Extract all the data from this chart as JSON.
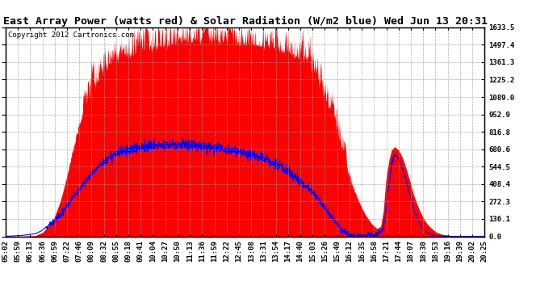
{
  "title": "East Array Power (watts red) & Solar Radiation (W/m2 blue) Wed Jun 13 20:31",
  "copyright": "Copyright 2012 Cartronics.com",
  "y_right_ticks": [
    0.0,
    136.1,
    272.3,
    408.4,
    544.5,
    680.6,
    816.8,
    952.9,
    1089.0,
    1225.2,
    1361.3,
    1497.4,
    1633.5
  ],
  "y_max": 1633.5,
  "y_min": 0.0,
  "x_labels": [
    "05:02",
    "05:59",
    "06:13",
    "06:36",
    "06:59",
    "07:22",
    "07:46",
    "08:09",
    "08:32",
    "08:55",
    "09:18",
    "09:41",
    "10:04",
    "10:27",
    "10:50",
    "11:13",
    "11:36",
    "11:59",
    "12:22",
    "12:45",
    "13:08",
    "13:31",
    "13:54",
    "14:17",
    "14:40",
    "15:03",
    "15:26",
    "15:49",
    "16:12",
    "16:35",
    "16:58",
    "17:21",
    "17:44",
    "18:07",
    "18:30",
    "18:53",
    "19:16",
    "19:39",
    "20:02",
    "20:25"
  ],
  "bg_color": "#ffffff",
  "grid_color": "#999999",
  "fill_color_red": "#ff0000",
  "line_color_blue": "#0000ff",
  "title_fontsize": 9.5,
  "tick_fontsize": 6.5,
  "copyright_fontsize": 6.5,
  "power_points": [
    [
      302,
      0
    ],
    [
      330,
      0
    ],
    [
      359,
      5
    ],
    [
      373,
      30
    ],
    [
      385,
      80
    ],
    [
      396,
      150
    ],
    [
      408,
      280
    ],
    [
      419,
      450
    ],
    [
      430,
      650
    ],
    [
      442,
      850
    ],
    [
      454,
      1000
    ],
    [
      466,
      1100
    ],
    [
      478,
      1180
    ],
    [
      489,
      1250
    ],
    [
      500,
      1300
    ],
    [
      512,
      1350
    ],
    [
      523,
      1380
    ],
    [
      535,
      1400
    ],
    [
      546,
      1420
    ],
    [
      558,
      1440
    ],
    [
      570,
      1460
    ],
    [
      581,
      1470
    ],
    [
      593,
      1480
    ],
    [
      604,
      1490
    ],
    [
      616,
      1500
    ],
    [
      627,
      1510
    ],
    [
      638,
      1520
    ],
    [
      650,
      1525
    ],
    [
      661,
      1530
    ],
    [
      673,
      1530
    ],
    [
      684,
      1530
    ],
    [
      696,
      1528
    ],
    [
      707,
      1525
    ],
    [
      719,
      1520
    ],
    [
      730,
      1518
    ],
    [
      742,
      1515
    ],
    [
      753,
      1510
    ],
    [
      765,
      1505
    ],
    [
      776,
      1500
    ],
    [
      788,
      1495
    ],
    [
      800,
      1488
    ],
    [
      811,
      1480
    ],
    [
      823,
      1470
    ],
    [
      834,
      1455
    ],
    [
      846,
      1435
    ],
    [
      857,
      1410
    ],
    [
      869,
      1380
    ],
    [
      880,
      1340
    ],
    [
      892,
      1280
    ],
    [
      903,
      1200
    ],
    [
      915,
      1100
    ],
    [
      926,
      980
    ],
    [
      938,
      840
    ],
    [
      949,
      680
    ],
    [
      961,
      520
    ],
    [
      972,
      380
    ],
    [
      984,
      260
    ],
    [
      995,
      170
    ],
    [
      1007,
      100
    ],
    [
      1018,
      60
    ],
    [
      1025,
      80
    ],
    [
      1030,
      200
    ],
    [
      1035,
      450
    ],
    [
      1041,
      600
    ],
    [
      1046,
      680
    ],
    [
      1052,
      700
    ],
    [
      1058,
      680
    ],
    [
      1064,
      640
    ],
    [
      1070,
      580
    ],
    [
      1076,
      500
    ],
    [
      1082,
      420
    ],
    [
      1087,
      340
    ],
    [
      1093,
      270
    ],
    [
      1099,
      210
    ],
    [
      1105,
      160
    ],
    [
      1110,
      120
    ],
    [
      1116,
      90
    ],
    [
      1122,
      65
    ],
    [
      1128,
      45
    ],
    [
      1133,
      30
    ],
    [
      1144,
      15
    ],
    [
      1156,
      8
    ],
    [
      1168,
      3
    ],
    [
      1179,
      1
    ],
    [
      1202,
      0
    ],
    [
      1225,
      0
    ]
  ],
  "radiation_points": [
    [
      302,
      0
    ],
    [
      330,
      5
    ],
    [
      359,
      20
    ],
    [
      370,
      40
    ],
    [
      380,
      70
    ],
    [
      396,
      120
    ],
    [
      408,
      170
    ],
    [
      419,
      230
    ],
    [
      430,
      295
    ],
    [
      442,
      360
    ],
    [
      454,
      420
    ],
    [
      466,
      480
    ],
    [
      478,
      530
    ],
    [
      489,
      570
    ],
    [
      500,
      610
    ],
    [
      512,
      640
    ],
    [
      523,
      660
    ],
    [
      535,
      675
    ],
    [
      546,
      685
    ],
    [
      558,
      695
    ],
    [
      570,
      700
    ],
    [
      581,
      705
    ],
    [
      593,
      710
    ],
    [
      604,
      715
    ],
    [
      616,
      718
    ],
    [
      627,
      720
    ],
    [
      638,
      720
    ],
    [
      650,
      718
    ],
    [
      661,
      715
    ],
    [
      673,
      710
    ],
    [
      684,
      705
    ],
    [
      696,
      700
    ],
    [
      707,
      695
    ],
    [
      719,
      688
    ],
    [
      730,
      680
    ],
    [
      742,
      672
    ],
    [
      753,
      663
    ],
    [
      765,
      652
    ],
    [
      776,
      640
    ],
    [
      788,
      625
    ],
    [
      800,
      608
    ],
    [
      811,
      588
    ],
    [
      823,
      565
    ],
    [
      834,
      538
    ],
    [
      846,
      508
    ],
    [
      857,
      474
    ],
    [
      869,
      436
    ],
    [
      880,
      394
    ],
    [
      892,
      348
    ],
    [
      903,
      296
    ],
    [
      915,
      238
    ],
    [
      926,
      175
    ],
    [
      938,
      110
    ],
    [
      949,
      55
    ],
    [
      961,
      20
    ],
    [
      972,
      5
    ],
    [
      984,
      2
    ],
    [
      995,
      5
    ],
    [
      1007,
      8
    ],
    [
      1018,
      15
    ],
    [
      1025,
      30
    ],
    [
      1030,
      80
    ],
    [
      1035,
      200
    ],
    [
      1041,
      420
    ],
    [
      1046,
      580
    ],
    [
      1052,
      640
    ],
    [
      1058,
      620
    ],
    [
      1064,
      570
    ],
    [
      1070,
      490
    ],
    [
      1076,
      400
    ],
    [
      1082,
      310
    ],
    [
      1087,
      230
    ],
    [
      1093,
      165
    ],
    [
      1099,
      110
    ],
    [
      1105,
      70
    ],
    [
      1110,
      45
    ],
    [
      1116,
      28
    ],
    [
      1122,
      15
    ],
    [
      1128,
      8
    ],
    [
      1133,
      4
    ],
    [
      1144,
      1
    ],
    [
      1156,
      0
    ],
    [
      1225,
      0
    ]
  ]
}
